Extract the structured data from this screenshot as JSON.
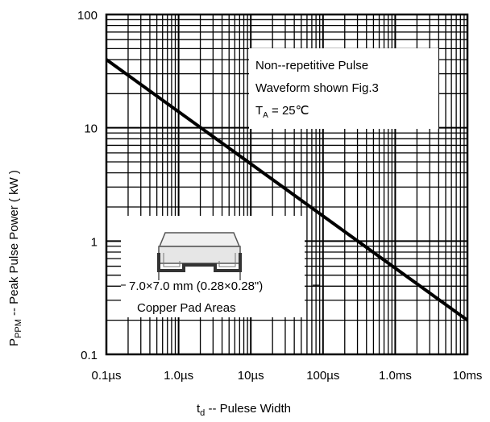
{
  "chart_data": {
    "type": "line",
    "x_scale": "log",
    "y_scale": "log",
    "xlim": [
      1e-07,
      0.01
    ],
    "ylim": [
      0.1,
      100
    ],
    "x_ticks": [
      {
        "value": 1e-07,
        "label": "0.1µs"
      },
      {
        "value": 1e-06,
        "label": "1.0µs"
      },
      {
        "value": 1e-05,
        "label": "10µs"
      },
      {
        "value": 0.0001,
        "label": "100µs"
      },
      {
        "value": 0.001,
        "label": "1.0ms"
      },
      {
        "value": 0.01,
        "label": "10ms"
      }
    ],
    "y_ticks": [
      {
        "value": 0.1,
        "label": "0.1"
      },
      {
        "value": 1,
        "label": "1"
      },
      {
        "value": 10,
        "label": "10"
      },
      {
        "value": 100,
        "label": "100"
      }
    ],
    "xlabel": {
      "main": "t",
      "sub": "d",
      "rest": " -- Pulese Width"
    },
    "ylabel": {
      "main": "P",
      "sub": "PPM",
      "rest": " -- Peak Pulse Power ( kW )"
    },
    "grid": true,
    "series": [
      {
        "x": [
          1e-07,
          0.01
        ],
        "y": [
          40,
          0.2
        ]
      }
    ],
    "annotation": {
      "line1": "Non--repetitive Pulse",
      "line2": "Waveform shown Fig.3",
      "line3_main": "T",
      "line3_sub": "A",
      "line3_rest": " = 25℃"
    },
    "inset": {
      "label1": "7.0×7.0 mm (0.28×0.28\")",
      "label2": "Copper Pad Areas"
    }
  }
}
